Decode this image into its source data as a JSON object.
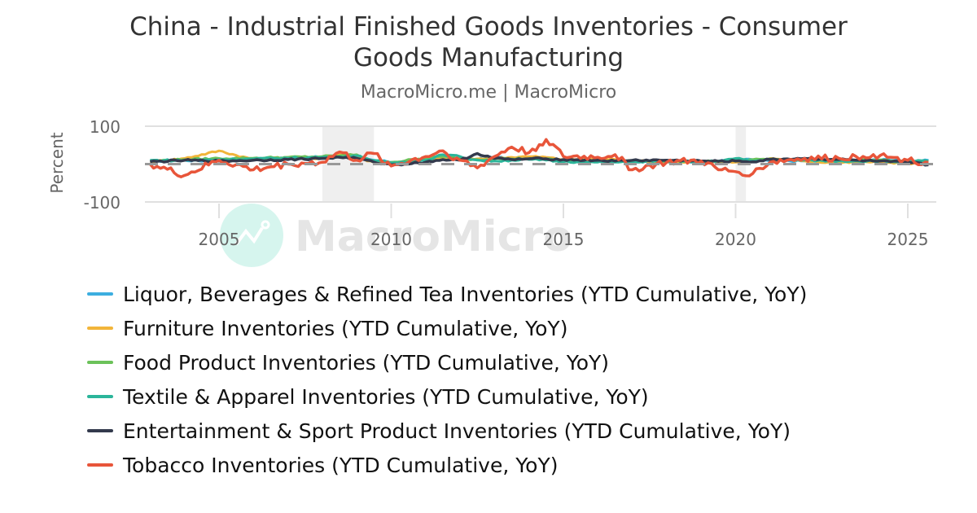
{
  "header": {
    "title_line1": "China - Industrial Finished Goods Inventories - Consumer",
    "title_line2": "Goods Manufacturing",
    "subtitle": "MacroMicro.me | MacroMicro"
  },
  "watermark": {
    "text": "MacroMicro",
    "icon": "macromicro-logo-icon"
  },
  "colors": {
    "liquor": "#3caee0",
    "furniture": "#f2b53a",
    "food": "#6cc25a",
    "textile": "#2bb59a",
    "entertainment": "#333a4d",
    "tobacco": "#e8553a",
    "zero_line": "#999999",
    "recession": "#efefef",
    "grid": "#e0e0e0"
  },
  "legend": [
    {
      "label": "Liquor, Beverages & Refined Tea Inventories (YTD Cumulative, YoY)",
      "color": "#3caee0"
    },
    {
      "label": "Furniture Inventories (YTD Cumulative, YoY)",
      "color": "#f2b53a"
    },
    {
      "label": "Food Product Inventories (YTD Cumulative, YoY)",
      "color": "#6cc25a"
    },
    {
      "label": "Textile & Apparel Inventories (YTD Cumulative, YoY)",
      "color": "#2bb59a"
    },
    {
      "label": "Entertainment & Sport Product Inventories (YTD Cumulative, YoY)",
      "color": "#333a4d"
    },
    {
      "label": "Tobacco Inventories (YTD Cumulative, YoY)",
      "color": "#e8553a"
    }
  ],
  "chart_data": {
    "type": "line",
    "title": "China - Industrial Finished Goods Inventories - Consumer Goods Manufacturing",
    "subtitle": "MacroMicro.me | MacroMicro",
    "xlabel": "",
    "ylabel": "Percent",
    "ylim": [
      -100,
      100
    ],
    "yticks": [
      100,
      -100
    ],
    "xticks": [
      "2005",
      "2010",
      "2015",
      "2020",
      "2025"
    ],
    "xlim": [
      2002.8,
      2025.9
    ],
    "grid": true,
    "legend_position": "bottom",
    "reference_line": {
      "y": 0,
      "style": "dashed",
      "color": "#999999"
    },
    "shaded_periods": [
      [
        2008.0,
        2009.5
      ],
      [
        2020.0,
        2020.3
      ]
    ],
    "x": [
      2003.0,
      2004.0,
      2005.0,
      2006.0,
      2007.0,
      2008.0,
      2008.5,
      2009.0,
      2009.5,
      2010.0,
      2011.0,
      2011.5,
      2012.0,
      2012.5,
      2013.0,
      2013.5,
      2014.0,
      2014.5,
      2015.0,
      2016.0,
      2016.5,
      2017.0,
      2018.0,
      2019.0,
      2019.5,
      2020.0,
      2020.5,
      2021.0,
      2022.0,
      2023.0,
      2023.5,
      2024.0,
      2024.5,
      2025.0,
      2025.6
    ],
    "series": [
      {
        "name": "Liquor, Beverages & Refined Tea Inventories (YTD Cumulative, YoY)",
        "values": [
          8,
          10,
          8,
          12,
          15,
          20,
          25,
          15,
          10,
          5,
          12,
          22,
          15,
          12,
          18,
          15,
          18,
          15,
          10,
          8,
          6,
          5,
          6,
          5,
          8,
          10,
          12,
          8,
          8,
          10,
          10,
          12,
          10,
          8,
          10
        ]
      },
      {
        "name": "Furniture Inventories (YTD Cumulative, YoY)",
        "values": [
          6,
          15,
          35,
          12,
          18,
          15,
          25,
          18,
          5,
          3,
          10,
          15,
          12,
          14,
          16,
          18,
          20,
          18,
          12,
          14,
          12,
          8,
          6,
          5,
          4,
          5,
          10,
          15,
          8,
          2,
          5,
          6,
          4,
          2,
          3
        ]
      },
      {
        "name": "Food Product Inventories (YTD Cumulative, YoY)",
        "values": [
          8,
          12,
          15,
          16,
          18,
          20,
          22,
          25,
          8,
          5,
          15,
          20,
          15,
          12,
          14,
          14,
          15,
          14,
          10,
          8,
          8,
          8,
          8,
          6,
          8,
          10,
          12,
          14,
          12,
          10,
          10,
          10,
          8,
          8,
          8
        ]
      },
      {
        "name": "Textile & Apparel Inventories (YTD Cumulative, YoY)",
        "values": [
          10,
          10,
          12,
          14,
          16,
          18,
          20,
          22,
          10,
          3,
          10,
          25,
          20,
          10,
          8,
          10,
          12,
          10,
          6,
          5,
          5,
          6,
          8,
          6,
          8,
          15,
          8,
          12,
          10,
          8,
          8,
          8,
          6,
          8,
          8
        ]
      },
      {
        "name": "Entertainment & Sport Product Inventories (YTD Cumulative, YoY)",
        "values": [
          6,
          10,
          8,
          10,
          12,
          15,
          18,
          15,
          5,
          -2,
          5,
          12,
          10,
          28,
          15,
          12,
          14,
          14,
          12,
          10,
          8,
          10,
          10,
          8,
          7,
          8,
          6,
          12,
          15,
          12,
          10,
          8,
          6,
          5,
          -2
        ]
      },
      {
        "name": "Tobacco Inventories (YTD Cumulative, YoY)",
        "values": [
          0,
          -30,
          10,
          -15,
          0,
          5,
          32,
          10,
          28,
          -5,
          20,
          35,
          10,
          -10,
          20,
          45,
          30,
          65,
          20,
          18,
          25,
          -15,
          5,
          8,
          -15,
          -20,
          -25,
          5,
          15,
          15,
          20,
          25,
          18,
          10,
          5
        ]
      }
    ]
  }
}
